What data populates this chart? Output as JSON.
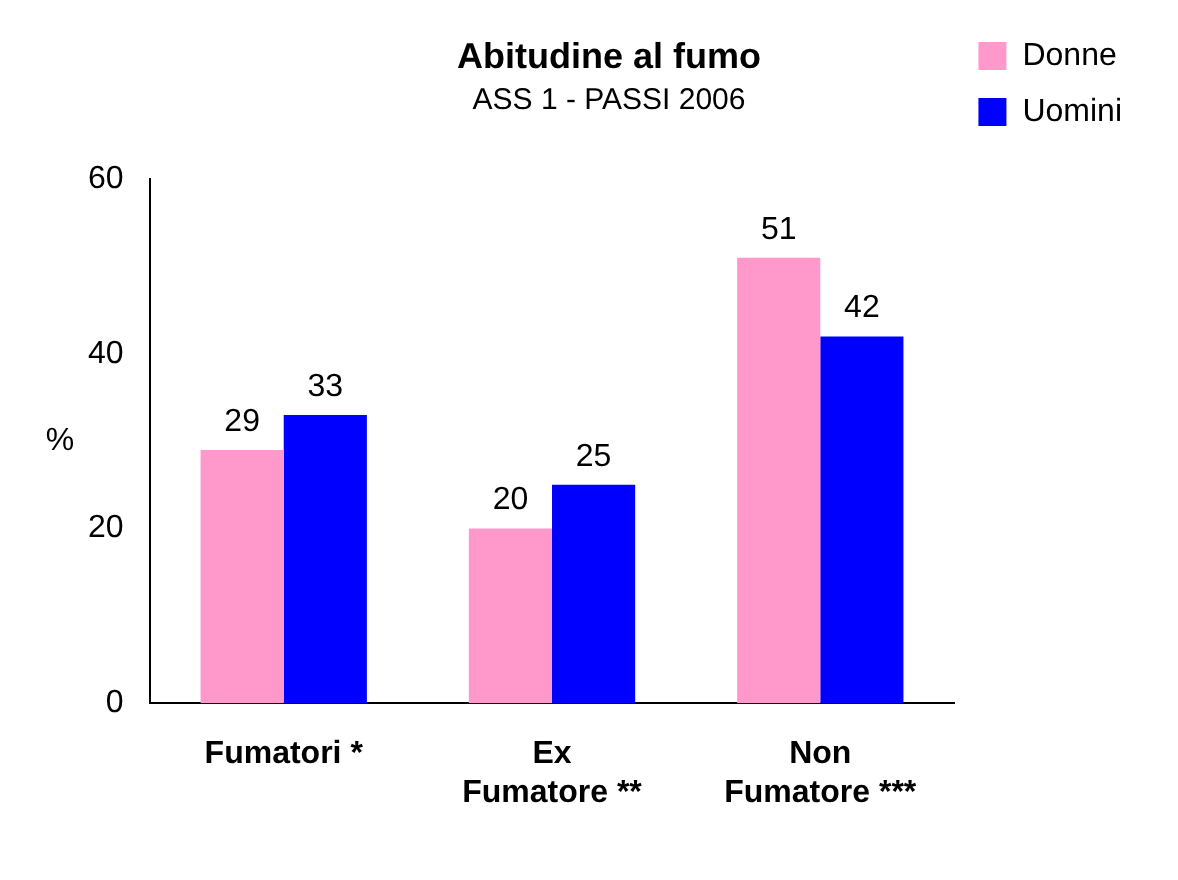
{
  "chart_data": {
    "type": "bar",
    "title": "Abitudine al fumo",
    "subtitle": "ASS 1 - PASSI 2006",
    "ylabel": "%",
    "categories": [
      "Fumatori *",
      "Ex\nFumatore **",
      "Non\nFumatore ***"
    ],
    "series": [
      {
        "name": "Donne",
        "color": "#ff99cc",
        "values": [
          29,
          20,
          51
        ]
      },
      {
        "name": "Uomini",
        "color": "#0000ff",
        "values": [
          33,
          25,
          42
        ]
      }
    ],
    "ylim": [
      0,
      60
    ],
    "yticks": [
      0,
      20,
      40,
      60
    ],
    "grid": false,
    "legend": "right",
    "data_labels": true
  }
}
